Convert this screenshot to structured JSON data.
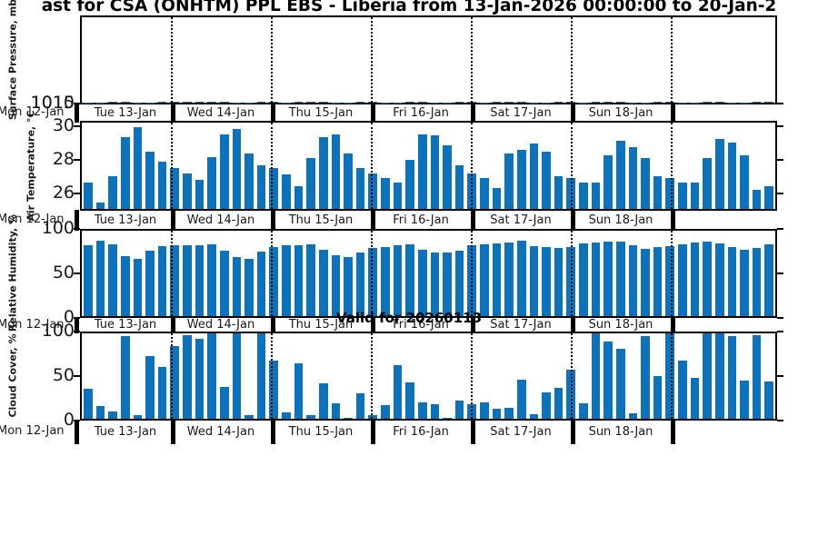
{
  "title_visible": "ast for CSA (ONHTM) PPL EBS  - Liberia from 13-Jan-2026 00:00:00 to 20-Jan-2",
  "watermark": "Valid for 20260113",
  "colors": {
    "bar": "#0d72bc",
    "axis": "#000000"
  },
  "x_axis": {
    "left_edge_label": "Mon 12-Jan",
    "day_labels": [
      "Tue 13-Jan",
      "Wed 14-Jan",
      "Thu 15-Jan",
      "Fri 16-Jan",
      "Sat 17-Jan",
      "Sun 18-Jan"
    ]
  },
  "chart_data": [
    {
      "type": "bar",
      "name": "surface-pressure",
      "ylabel": "Surface Pressure, mb",
      "yticks": [
        1010,
        1015
      ],
      "ylim": [
        1007.2,
        1540.0
      ],
      "x": "3-hourly, 13-Jan to 19-Jan",
      "values": [
        1009.6,
        1010.1,
        1012.3,
        1010.6,
        1008.5,
        1008.7,
        1011.2,
        1011.2,
        1010.2,
        1010.9,
        1012.9,
        1011.6,
        1009.5,
        1008.9,
        1010.7,
        1011.0,
        1009.7,
        1010.4,
        1012.5,
        1011.5,
        1009.4,
        1009.2,
        1011.7,
        1010.9,
        1008.8,
        1010.1,
        1012.4,
        1011.0,
        1009.3,
        1008.6,
        1011.0,
        1011.3,
        1009.8,
        1010.3,
        1012.2,
        1011.9,
        1009.1,
        1008.6,
        1011.0,
        1011.6,
        1009.9,
        1010.6,
        1012.2,
        1011.3,
        1008.6,
        1009.0,
        1011.6,
        1010.9,
        1008.5,
        1009.6,
        1012.0,
        1010.4,
        1008.3,
        1008.9,
        1011.9,
        1011.8
      ]
    },
    {
      "type": "bar",
      "name": "air-temperature",
      "ylabel": "Air Temperature, °C",
      "yticks": [
        26,
        28,
        30
      ],
      "ylim": [
        25.0,
        30.3
      ],
      "x": "3-hourly, 13-Jan to 19-Jan",
      "values": [
        26.6,
        25.4,
        27.0,
        29.4,
        30.0,
        28.5,
        27.9,
        27.5,
        27.2,
        26.8,
        28.2,
        29.6,
        29.9,
        28.4,
        27.7,
        27.5,
        27.1,
        26.4,
        28.1,
        29.4,
        29.6,
        28.4,
        27.5,
        27.2,
        26.9,
        26.6,
        28.0,
        29.6,
        29.5,
        28.9,
        27.7,
        27.2,
        26.9,
        26.3,
        28.4,
        28.6,
        29.0,
        28.5,
        27.0,
        26.9,
        26.6,
        26.6,
        28.3,
        29.2,
        28.8,
        28.1,
        27.0,
        26.9,
        26.6,
        26.6,
        28.1,
        29.3,
        29.1,
        28.3,
        26.2,
        26.4
      ]
    },
    {
      "type": "bar",
      "name": "relative-humidity",
      "ylabel": "Relative Humidity, %",
      "yticks": [
        0,
        50,
        100
      ],
      "ylim": [
        0,
        100
      ],
      "x": "3-hourly, 13-Jan to 19-Jan",
      "values": [
        83,
        88,
        84,
        70,
        67,
        77,
        82,
        83,
        83,
        83,
        84,
        77,
        69,
        67,
        76,
        81,
        83,
        83,
        84,
        78,
        71,
        69,
        75,
        80,
        81,
        83,
        84,
        78,
        75,
        74,
        77,
        83,
        84,
        85,
        86,
        88,
        82,
        81,
        80,
        81,
        85,
        86,
        87,
        87,
        83,
        79,
        81,
        82,
        84,
        86,
        87,
        85,
        81,
        78,
        80,
        84
      ]
    },
    {
      "type": "bar",
      "name": "cloud-cover",
      "ylabel": "Cloud Cover, %",
      "yticks": [
        0,
        50,
        100
      ],
      "ylim": [
        0,
        100
      ],
      "x": "3-hourly, 13-Jan to 19-Jan",
      "values": [
        35,
        15,
        9,
        97,
        4,
        73,
        61,
        85,
        98,
        94,
        100,
        37,
        100,
        4,
        100,
        68,
        7,
        65,
        4,
        41,
        18,
        1,
        30,
        4,
        16,
        63,
        43,
        19,
        17,
        1,
        21,
        17,
        19,
        12,
        13,
        46,
        5,
        31,
        36,
        57,
        18,
        100,
        90,
        82,
        6,
        97,
        50,
        100,
        68,
        48,
        100,
        100,
        97,
        45,
        98,
        44
      ]
    }
  ]
}
